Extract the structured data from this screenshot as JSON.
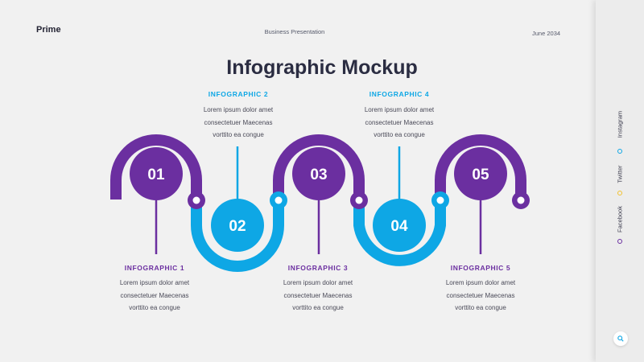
{
  "header": {
    "brand": "Prime",
    "subtitle": "Business Presentation",
    "date": "June 2034"
  },
  "title": "Infographic Mockup",
  "colors": {
    "purple": "#6b2fa0",
    "blue": "#0ea7e5",
    "yellow": "#f2c12e",
    "background": "#f1f1f1"
  },
  "steps": [
    {
      "number": "01",
      "heading": "INFOGRAPHIC  1",
      "line1": "Lorem ipsum dolor amet",
      "line2": "consectetuer  Maecenas",
      "line3": "vorttito ea congue"
    },
    {
      "number": "02",
      "heading": "INFOGRAPHIC  2",
      "line1": "Lorem ipsum dolor amet",
      "line2": "consectetuer  Maecenas",
      "line3": "vorttito ea congue"
    },
    {
      "number": "03",
      "heading": "INFOGRAPHIC  3",
      "line1": "Lorem ipsum dolor amet",
      "line2": "consectetuer  Maecenas",
      "line3": "vorttito ea congue"
    },
    {
      "number": "04",
      "heading": "INFOGRAPHIC  4",
      "line1": "Lorem ipsum dolor amet",
      "line2": "consectetuer  Maecenas",
      "line3": "vorttito ea congue"
    },
    {
      "number": "05",
      "heading": "INFOGRAPHIC  5",
      "line1": "Lorem ipsum dolor amet",
      "line2": "consectetuer  Maecenas",
      "line3": "vorttito ea congue"
    }
  ],
  "sidebar": {
    "social": [
      {
        "label": "Instagram",
        "dot_color": "#0ea7e5"
      },
      {
        "label": "Twitter",
        "dot_color": "#f2c12e"
      },
      {
        "label": "Facebook",
        "dot_color": "#6b2fa0"
      }
    ],
    "search_icon": "search-icon"
  }
}
